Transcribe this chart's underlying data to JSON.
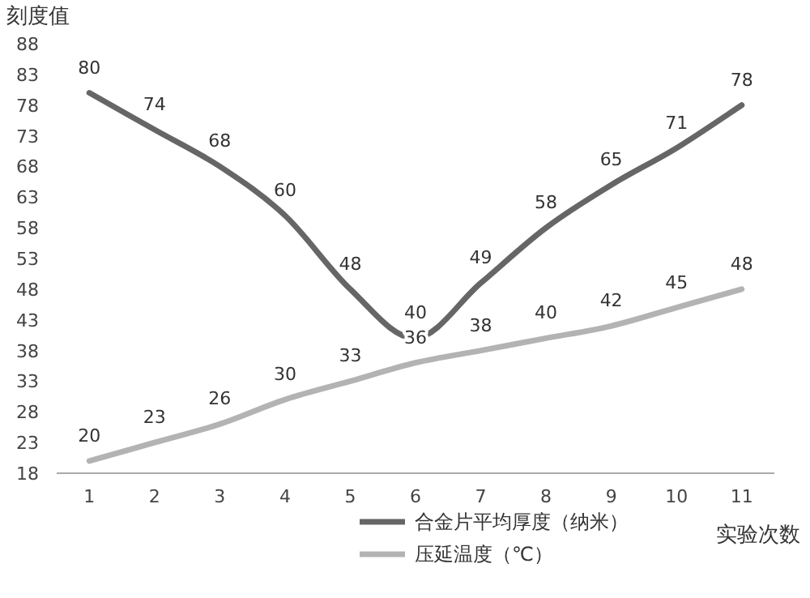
{
  "chart_data": {
    "type": "line",
    "ylabel": "刻度值",
    "xlabel": "实验次数",
    "categories": [
      "1",
      "2",
      "3",
      "4",
      "5",
      "6",
      "7",
      "8",
      "9",
      "10",
      "11"
    ],
    "series": [
      {
        "name": "合金片平均厚度（纳米）",
        "color": "#666666",
        "values": [
          80,
          74,
          68,
          60,
          48,
          40,
          49,
          58,
          65,
          71,
          78
        ]
      },
      {
        "name": "压延温度（℃）",
        "color": "#b3b3b3",
        "values": [
          20,
          23,
          26,
          30,
          33,
          36,
          38,
          40,
          42,
          45,
          48
        ]
      }
    ],
    "ylim": [
      18,
      88
    ],
    "yticks": [
      18,
      23,
      28,
      33,
      38,
      43,
      48,
      53,
      58,
      63,
      68,
      73,
      78,
      83,
      88
    ],
    "data_labels": true,
    "legend": "bottom",
    "grid": false,
    "marker": "none",
    "line_style": "solid"
  }
}
